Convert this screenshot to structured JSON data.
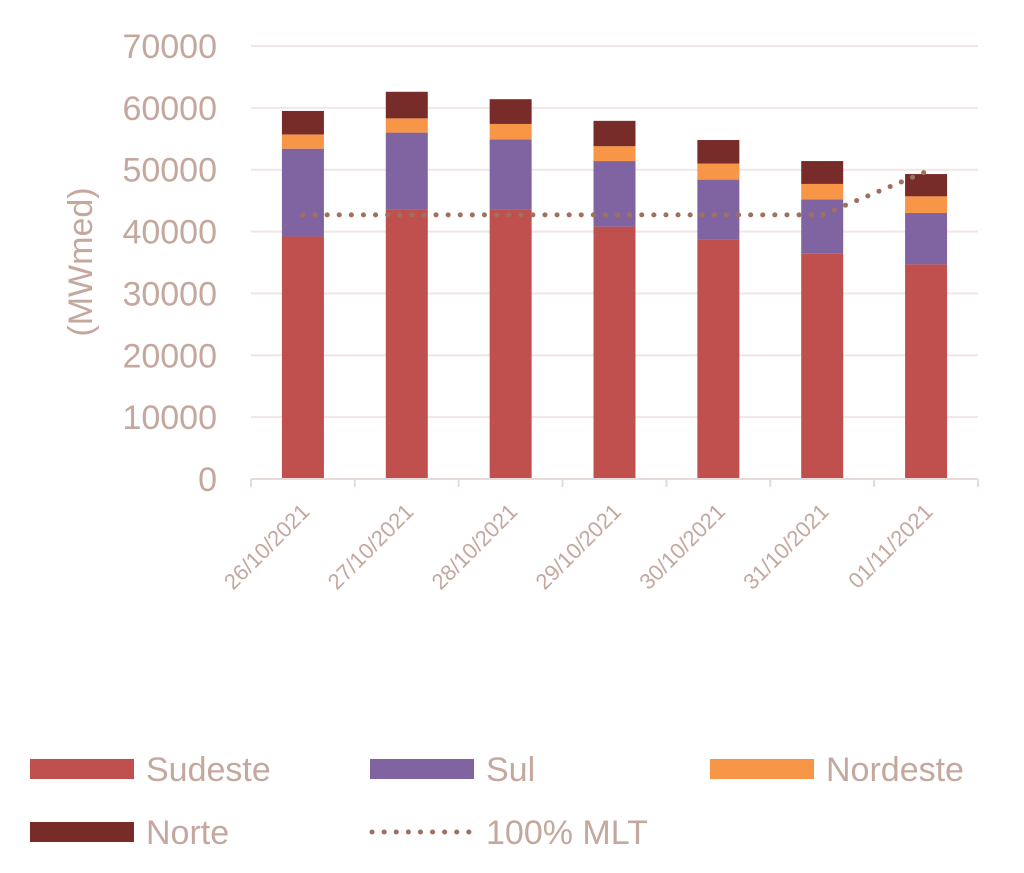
{
  "chart_data": {
    "type": "bar",
    "stacked": true,
    "ylabel": "(MWmed)",
    "ylim": [
      0,
      70000
    ],
    "yticks": [
      0,
      10000,
      20000,
      30000,
      40000,
      50000,
      60000,
      70000
    ],
    "grid": true,
    "legend_position": "bottom",
    "categories": [
      "26/10/2021",
      "27/10/2021",
      "28/10/2021",
      "29/10/2021",
      "30/10/2021",
      "31/10/2021",
      "01/11/2021"
    ],
    "series": [
      {
        "name": "Sudeste",
        "type": "bar",
        "color": "#c0504d",
        "values": [
          39200,
          43500,
          43500,
          40800,
          38700,
          36400,
          34700
        ]
      },
      {
        "name": "Sul",
        "type": "bar",
        "color": "#8064a2",
        "values": [
          14200,
          12500,
          11400,
          10600,
          9700,
          8800,
          8300
        ]
      },
      {
        "name": "Nordeste",
        "type": "bar",
        "color": "#f79646",
        "values": [
          2300,
          2300,
          2500,
          2400,
          2600,
          2500,
          2700
        ]
      },
      {
        "name": "Norte",
        "type": "bar",
        "color": "#772c2a",
        "values": [
          3800,
          4300,
          4000,
          4100,
          3800,
          3700,
          3600
        ]
      },
      {
        "name": "100% MLT",
        "type": "line",
        "style": "dotted",
        "color": "#a0705f",
        "values": [
          42700,
          42700,
          42700,
          42700,
          42700,
          42700,
          49700
        ]
      }
    ]
  }
}
